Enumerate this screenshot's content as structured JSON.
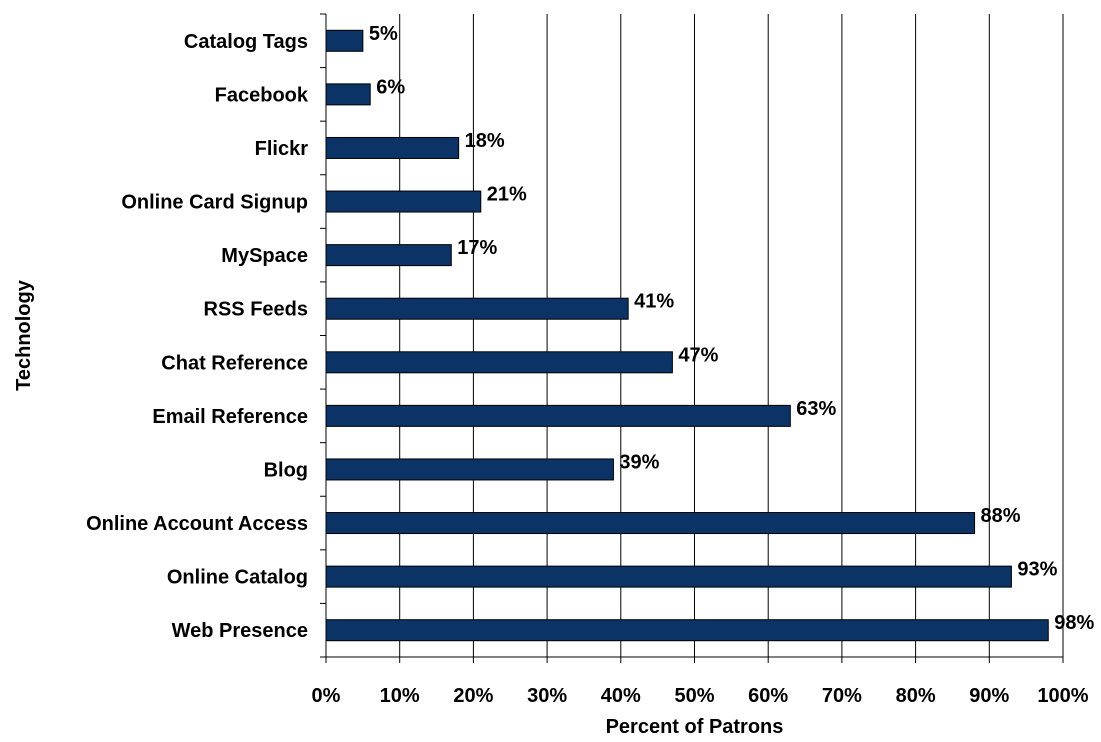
{
  "chart_data": {
    "type": "bar",
    "orientation": "horizontal",
    "categories": [
      "Catalog Tags",
      "Facebook",
      "Flickr",
      "Online Card Signup",
      "MySpace",
      "RSS Feeds",
      "Chat Reference",
      "Email Reference",
      "Blog",
      "Online Account Access",
      "Online Catalog",
      "Web Presence"
    ],
    "values": [
      5,
      6,
      18,
      21,
      17,
      41,
      47,
      63,
      39,
      88,
      93,
      98
    ],
    "value_labels": [
      "5%",
      "6%",
      "18%",
      "21%",
      "17%",
      "41%",
      "47%",
      "63%",
      "39%",
      "88%",
      "93%",
      "98%"
    ],
    "title": "",
    "xlabel": "Percent of Patrons",
    "ylabel": "Technology",
    "xlim": [
      0,
      100
    ],
    "x_ticks": [
      0,
      10,
      20,
      30,
      40,
      50,
      60,
      70,
      80,
      90,
      100
    ],
    "x_tick_labels": [
      "0%",
      "10%",
      "20%",
      "30%",
      "40%",
      "50%",
      "60%",
      "70%",
      "80%",
      "90%",
      "100%"
    ],
    "grid": "vertical",
    "legend": "none",
    "colors": {
      "bar_fill": "#0b3366",
      "bar_stroke": "#000000",
      "grid": "#000000",
      "axis": "#000000",
      "text": "#000000"
    }
  }
}
